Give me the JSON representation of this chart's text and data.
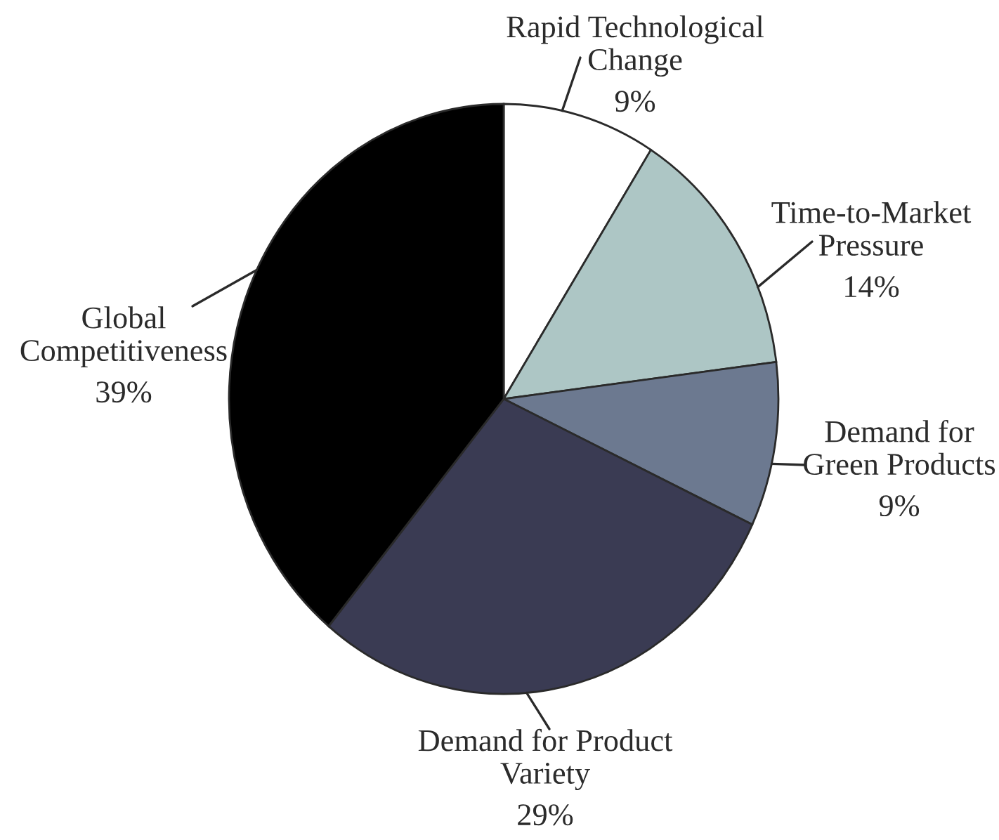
{
  "chart_data": {
    "type": "pie",
    "categories": [
      "Rapid Technological\nChange",
      "Time-to-Market\nPressure",
      "Demand for\nGreen Products",
      "Demand for Product\nVariety",
      "Global\nCompetitiveness"
    ],
    "values": [
      9,
      14,
      9,
      29,
      39
    ],
    "value_labels": [
      "9%",
      "14%",
      "9%",
      "29%",
      "39%"
    ],
    "colors": [
      "#ffffff",
      "#adc6c5",
      "#6c7990",
      "#3a3b53",
      "#000000"
    ]
  }
}
